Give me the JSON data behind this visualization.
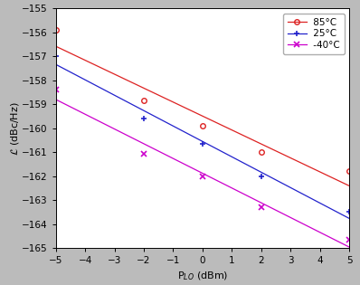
{
  "x_data": [
    -5,
    -2,
    0,
    2,
    5
  ],
  "y_85C": [
    -155.9,
    -158.85,
    -159.9,
    -161.0,
    -161.8
  ],
  "y_25C": [
    -157.0,
    -159.6,
    -160.65,
    -162.0,
    -163.5
  ],
  "y_40C": [
    -158.4,
    -161.05,
    -162.0,
    -163.3,
    -164.65
  ],
  "color_85C": "#dd2222",
  "color_25C": "#2222cc",
  "color_40C": "#cc00cc",
  "xlim": [
    -5,
    5
  ],
  "ylim": [
    -165,
    -155
  ],
  "xlabel": "P$_{LO}$ (dBm)",
  "ylabel": "$\\mathcal{L}$ (dBc/Hz)",
  "xticks": [
    -5,
    -4,
    -3,
    -2,
    -1,
    0,
    1,
    2,
    3,
    4,
    5
  ],
  "yticks": [
    -165,
    -164,
    -163,
    -162,
    -161,
    -160,
    -159,
    -158,
    -157,
    -156,
    -155
  ],
  "bg_color": "#bbbbbb",
  "plot_bg": "#ffffff"
}
